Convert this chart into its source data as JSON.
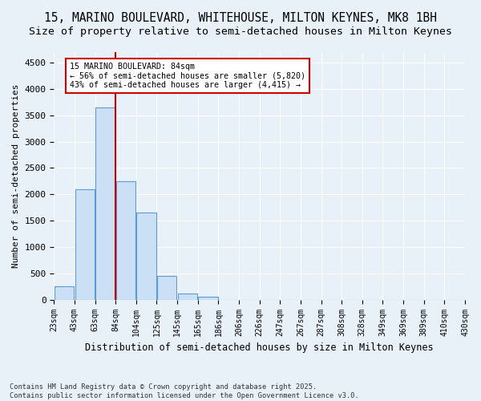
{
  "title1": "15, MARINO BOULEVARD, WHITEHOUSE, MILTON KEYNES, MK8 1BH",
  "title2": "Size of property relative to semi-detached houses in Milton Keynes",
  "xlabel": "Distribution of semi-detached houses by size in Milton Keynes",
  "ylabel": "Number of semi-detached properties",
  "footnote": "Contains HM Land Registry data © Crown copyright and database right 2025.\nContains public sector information licensed under the Open Government Licence v3.0.",
  "bin_labels": [
    "23sqm",
    "43sqm",
    "63sqm",
    "84sqm",
    "104sqm",
    "125sqm",
    "145sqm",
    "165sqm",
    "186sqm",
    "206sqm",
    "226sqm",
    "247sqm",
    "267sqm",
    "287sqm",
    "308sqm",
    "328sqm",
    "349sqm",
    "369sqm",
    "389sqm",
    "410sqm",
    "430sqm"
  ],
  "bar_heights": [
    250,
    2100,
    3650,
    2250,
    1650,
    450,
    120,
    60,
    0,
    0,
    0,
    0,
    0,
    0,
    0,
    0,
    0,
    0,
    0,
    0
  ],
  "bar_color": "#cce0f5",
  "bar_edge_color": "#5b9bd5",
  "red_line_index": 3,
  "red_line_color": "#cc0000",
  "annotation_title": "15 MARINO BOULEVARD: 84sqm",
  "annotation_line1": "← 56% of semi-detached houses are smaller (5,820)",
  "annotation_line2": "43% of semi-detached houses are larger (4,415) →",
  "annotation_box_color": "#cc0000",
  "ylim": [
    0,
    4700
  ],
  "yticks": [
    0,
    500,
    1000,
    1500,
    2000,
    2500,
    3000,
    3500,
    4000,
    4500
  ],
  "bg_color": "#e8f0f8",
  "plot_bg_color": "#e8f0f8",
  "title1_fontsize": 10.5,
  "title2_fontsize": 9.5
}
